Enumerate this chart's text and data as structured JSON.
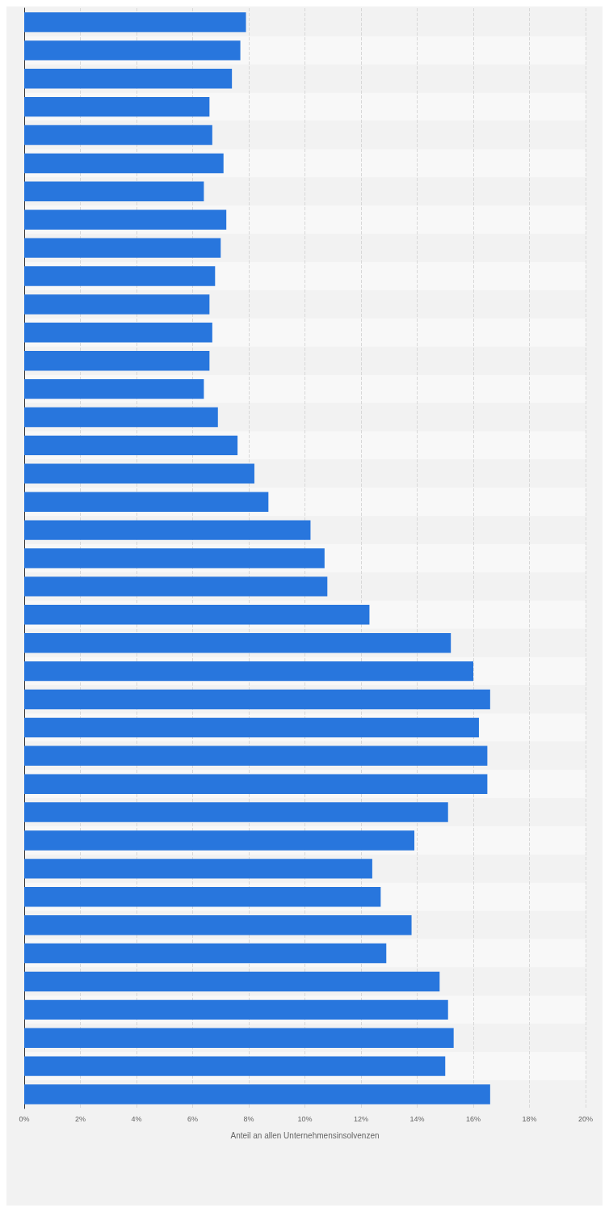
{
  "chart_data": {
    "type": "bar",
    "orientation": "horizontal",
    "xlabel": "Anteil an allen Unternehmensinsolvenzen",
    "categories": [
      null,
      null,
      null,
      null,
      null,
      null,
      null,
      null,
      null,
      null,
      null,
      null,
      null,
      null,
      null,
      null,
      null,
      null,
      null,
      null,
      null,
      null,
      null,
      null,
      null,
      null,
      null,
      null,
      null,
      null,
      null,
      null,
      null,
      null,
      null,
      null,
      null,
      null,
      null
    ],
    "values": [
      7.9,
      7.7,
      7.4,
      6.6,
      6.7,
      7.1,
      6.4,
      7.2,
      7.0,
      6.8,
      6.6,
      6.7,
      6.6,
      6.4,
      6.9,
      7.6,
      8.2,
      8.7,
      10.2,
      10.7,
      10.8,
      12.3,
      15.2,
      16.0,
      16.6,
      16.2,
      16.5,
      16.5,
      15.1,
      13.9,
      12.4,
      12.7,
      13.8,
      12.9,
      14.8,
      15.1,
      15.3,
      15.0,
      16.6
    ],
    "color": "#2876dd",
    "xlim": [
      0,
      20
    ],
    "xticks": [
      {
        "value": 0,
        "label": "0%"
      },
      {
        "value": 2,
        "label": "2%"
      },
      {
        "value": 4,
        "label": "4%"
      },
      {
        "value": 6,
        "label": "6%"
      },
      {
        "value": 8,
        "label": "8%"
      },
      {
        "value": 10,
        "label": "10%"
      },
      {
        "value": 12,
        "label": "12%"
      },
      {
        "value": 14,
        "label": "14%"
      },
      {
        "value": 16,
        "label": "16%"
      },
      {
        "value": 18,
        "label": "18%"
      },
      {
        "value": 20,
        "label": "20%"
      }
    ],
    "grid": "x",
    "tick_labels": "x"
  }
}
